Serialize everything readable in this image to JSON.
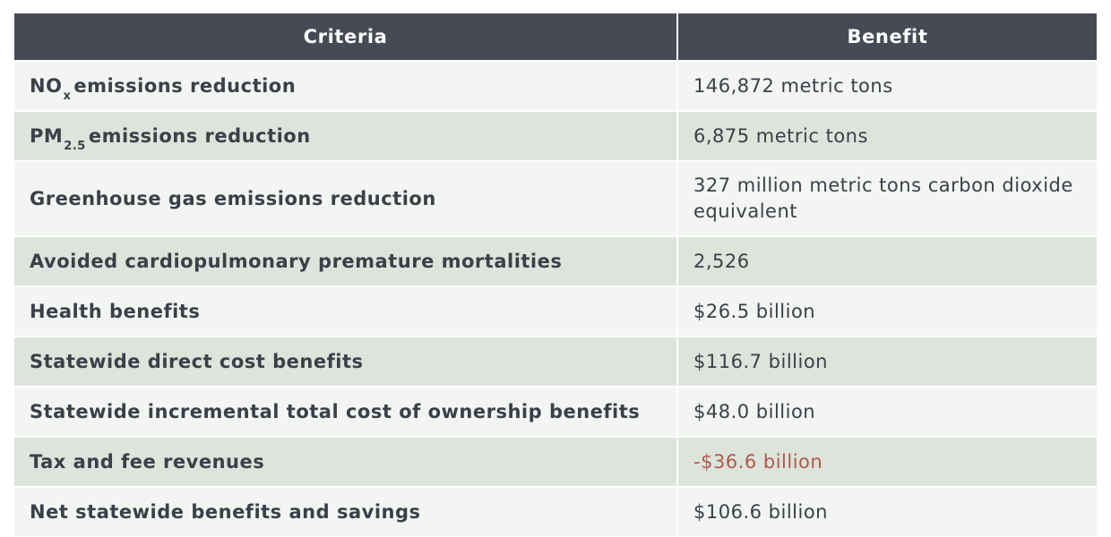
{
  "table": {
    "headers": {
      "criteria": "Criteria",
      "benefit": "Benefit"
    },
    "rows": [
      {
        "criteria_main": "NO",
        "criteria_sub": "x",
        "criteria_rest": "emissions reduction",
        "benefit": "146,872 metric tons"
      },
      {
        "criteria_main": "PM",
        "criteria_sub": "2.5",
        "criteria_rest": "emissions reduction",
        "benefit": "6,875 metric tons"
      },
      {
        "criteria": "Greenhouse gas emissions reduction",
        "benefit": "327 million metric tons carbon dioxide equivalent"
      },
      {
        "criteria": "Avoided cardiopulmonary premature mortalities",
        "benefit": "2,526"
      },
      {
        "criteria": "Health benefits",
        "benefit": "$26.5 billion"
      },
      {
        "criteria": "Statewide direct cost benefits",
        "benefit": "$116.7 billion"
      },
      {
        "criteria": "Statewide incremental total cost of ownership benefits",
        "benefit": "$48.0 billion"
      },
      {
        "criteria": "Tax and fee revenues",
        "benefit": "-$36.6 billion"
      },
      {
        "criteria": "Net statewide benefits and savings",
        "benefit": "$106.6 billion"
      }
    ]
  },
  "colors": {
    "header_bg": "#454a55",
    "row_light": "#f3f5f3",
    "row_shaded": "#dce4dc",
    "negative_text": "#b25a4a"
  }
}
